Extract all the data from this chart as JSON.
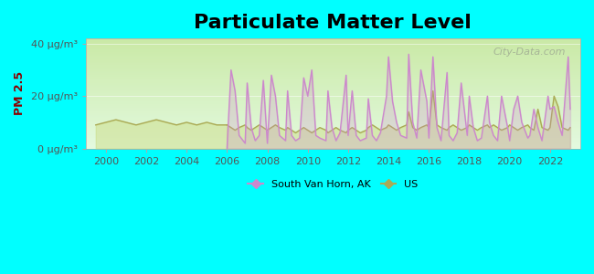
{
  "title": "Particulate Matter Level",
  "ylabel": "PM 2.5",
  "xlabel": "",
  "background_color": "#00ffff",
  "plot_bg_color_top": "#d4f0c0",
  "plot_bg_color_bottom": "#e8fde8",
  "title_fontsize": 16,
  "axis_label_color": "#8b0000",
  "tick_label_color": "#555555",
  "ylim": [
    0,
    42
  ],
  "yticks": [
    0,
    20,
    40
  ],
  "ytick_labels": [
    "0 μg/m³",
    "20 μg/m³",
    "40 μg/m³"
  ],
  "xlim": [
    1999,
    2023.5
  ],
  "xticks": [
    2000,
    2002,
    2004,
    2006,
    2008,
    2010,
    2012,
    2014,
    2016,
    2018,
    2020,
    2022
  ],
  "svh_color": "#cc88cc",
  "us_color": "#aaaa55",
  "svh_fill_color": "#cc88cc",
  "us_fill_color": "#ccdd88",
  "watermark": "City-Data.com",
  "legend_svh": "South Van Horn, AK",
  "legend_us": "US",
  "svh_data_x": [
    2006.0,
    2006.2,
    2006.4,
    2006.6,
    2006.9,
    2007.0,
    2007.2,
    2007.4,
    2007.6,
    2007.8,
    2008.0,
    2008.2,
    2008.4,
    2008.6,
    2008.9,
    2009.0,
    2009.2,
    2009.4,
    2009.6,
    2009.8,
    2010.0,
    2010.2,
    2010.4,
    2010.6,
    2010.9,
    2011.0,
    2011.2,
    2011.4,
    2011.6,
    2011.9,
    2012.0,
    2012.2,
    2012.4,
    2012.6,
    2012.9,
    2013.0,
    2013.2,
    2013.4,
    2013.6,
    2013.9,
    2014.0,
    2014.2,
    2014.4,
    2014.6,
    2014.9,
    2015.0,
    2015.2,
    2015.4,
    2015.6,
    2015.9,
    2016.0,
    2016.2,
    2016.4,
    2016.6,
    2016.9,
    2017.0,
    2017.2,
    2017.4,
    2017.6,
    2017.9,
    2018.0,
    2018.2,
    2018.4,
    2018.6,
    2018.9,
    2019.0,
    2019.2,
    2019.4,
    2019.6,
    2019.9,
    2020.0,
    2020.2,
    2020.4,
    2020.6,
    2020.9,
    2021.0,
    2021.2,
    2021.4,
    2021.6,
    2021.9,
    2022.0,
    2022.2,
    2022.4,
    2022.6,
    2022.9,
    2023.0
  ],
  "svh_data_y": [
    0,
    30,
    22,
    5,
    2,
    25,
    8,
    3,
    5,
    26,
    2,
    28,
    20,
    5,
    3,
    22,
    5,
    3,
    4,
    27,
    20,
    30,
    5,
    4,
    3,
    22,
    8,
    3,
    6,
    28,
    5,
    22,
    5,
    3,
    4,
    19,
    5,
    3,
    6,
    20,
    35,
    18,
    10,
    5,
    4,
    36,
    10,
    4,
    30,
    18,
    4,
    35,
    8,
    3,
    29,
    5,
    3,
    6,
    25,
    5,
    20,
    8,
    3,
    4,
    20,
    10,
    5,
    3,
    20,
    8,
    3,
    15,
    20,
    10,
    4,
    5,
    15,
    8,
    3,
    20,
    15,
    16,
    10,
    5,
    35,
    15
  ],
  "us_data_x_pre": [
    1999.5,
    2000.0,
    2000.5,
    2001.0,
    2001.5,
    2002.0,
    2002.5,
    2003.0,
    2003.5,
    2004.0,
    2004.5,
    2005.0,
    2005.5,
    2006.0
  ],
  "us_data_y_pre": [
    9,
    10,
    11,
    10,
    9,
    10,
    11,
    10,
    9,
    10,
    9,
    10,
    9,
    9
  ],
  "us_data_x": [
    2006.0,
    2006.2,
    2006.4,
    2006.6,
    2006.9,
    2007.0,
    2007.2,
    2007.4,
    2007.6,
    2007.8,
    2008.0,
    2008.2,
    2008.4,
    2008.6,
    2008.9,
    2009.0,
    2009.2,
    2009.4,
    2009.6,
    2009.8,
    2010.0,
    2010.2,
    2010.4,
    2010.6,
    2010.9,
    2011.0,
    2011.2,
    2011.4,
    2011.6,
    2011.9,
    2012.0,
    2012.2,
    2012.4,
    2012.6,
    2012.9,
    2013.0,
    2013.2,
    2013.4,
    2013.6,
    2013.9,
    2014.0,
    2014.2,
    2014.4,
    2014.6,
    2014.9,
    2015.0,
    2015.2,
    2015.4,
    2015.6,
    2015.9,
    2016.0,
    2016.2,
    2016.4,
    2016.6,
    2016.9,
    2017.0,
    2017.2,
    2017.4,
    2017.6,
    2017.9,
    2018.0,
    2018.2,
    2018.4,
    2018.6,
    2018.9,
    2019.0,
    2019.2,
    2019.4,
    2019.6,
    2019.9,
    2020.0,
    2020.2,
    2020.4,
    2020.6,
    2020.9,
    2021.0,
    2021.2,
    2021.4,
    2021.6,
    2021.9,
    2022.0,
    2022.2,
    2022.4,
    2022.6,
    2022.9,
    2023.0
  ],
  "us_data_y": [
    9,
    8,
    7,
    8,
    9,
    8,
    7,
    8,
    9,
    8,
    7,
    8,
    9,
    8,
    7,
    8,
    7,
    6,
    7,
    8,
    7,
    6,
    7,
    8,
    7,
    6,
    7,
    8,
    7,
    6,
    7,
    8,
    7,
    6,
    7,
    8,
    9,
    8,
    7,
    8,
    9,
    8,
    7,
    8,
    9,
    14,
    8,
    7,
    8,
    9,
    8,
    22,
    9,
    8,
    7,
    8,
    9,
    8,
    7,
    8,
    9,
    8,
    7,
    8,
    9,
    8,
    9,
    8,
    7,
    8,
    9,
    8,
    7,
    8,
    9,
    8,
    7,
    15,
    8,
    7,
    8,
    20,
    16,
    8,
    7,
    8
  ]
}
